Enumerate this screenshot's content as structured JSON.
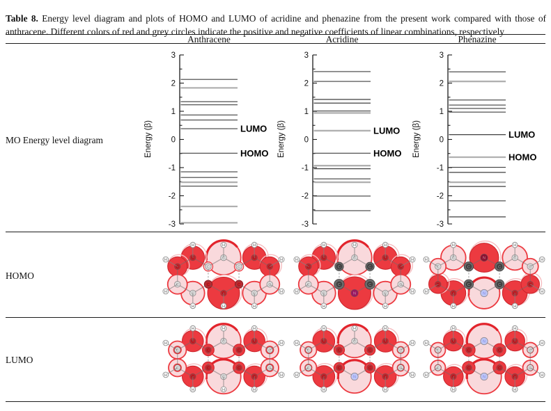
{
  "caption": {
    "label": "Table 8.",
    "text": " Energy level diagram and plots of HOMO and LUMO of acridine and phenazine from the present work compared with those of anthracene. Different colors of red and grey circles indicate the positive and negative coefficients of linear combinations, respectively"
  },
  "columns": [
    "Anthracene",
    "Acridine",
    "Phenazine"
  ],
  "rows": [
    "MO Energy level diagram",
    "HOMO",
    "LUMO"
  ],
  "colors": {
    "positive_red": "#ec3a40",
    "pale_pink": "#f9d9dc",
    "negative_grey": "#6e6e6e",
    "nitrogen_blue": "#bfc6f6",
    "nitrogen_magenta": "#9a1760",
    "nitrogen_darkred": "#8c1030",
    "level_dark": "#3f3f3f",
    "level_light": "#b0b0b0"
  },
  "energy_diagrams": {
    "ylabel": "Energy (β)",
    "ylim": [
      -3,
      3
    ],
    "yticks": [
      3,
      2,
      1,
      0,
      -1,
      -2,
      -3
    ],
    "lumo_label": "LUMO",
    "homo_label": "HOMO",
    "molecules": [
      {
        "name": "Anthracene",
        "lumo": 0.38,
        "homo": -0.49,
        "levels": [
          {
            "e": 2.13,
            "w": "d"
          },
          {
            "e": 1.83,
            "w": "l"
          },
          {
            "e": 1.34,
            "w": "d"
          },
          {
            "e": 1.23,
            "w": "d"
          },
          {
            "e": 0.87,
            "w": "d"
          },
          {
            "e": 0.69,
            "w": "d"
          },
          {
            "e": 0.38,
            "w": "d"
          },
          {
            "e": -0.49,
            "w": "d"
          },
          {
            "e": -1.15,
            "w": "d"
          },
          {
            "e": -1.35,
            "w": "d"
          },
          {
            "e": -1.52,
            "w": "l"
          },
          {
            "e": -1.66,
            "w": "d"
          },
          {
            "e": -2.38,
            "w": "l"
          },
          {
            "e": -2.96,
            "w": "l"
          }
        ]
      },
      {
        "name": "Acridine",
        "lumo": 0.31,
        "homo": -0.49,
        "levels": [
          {
            "e": 2.41,
            "w": "d"
          },
          {
            "e": 2.06,
            "w": "d"
          },
          {
            "e": 1.42,
            "w": "d"
          },
          {
            "e": 1.29,
            "w": "d"
          },
          {
            "e": 1.01,
            "w": "d"
          },
          {
            "e": 0.94,
            "w": "l"
          },
          {
            "e": 0.31,
            "w": "l"
          },
          {
            "e": -0.49,
            "w": "d"
          },
          {
            "e": -0.93,
            "w": "l"
          },
          {
            "e": -1.04,
            "w": "d"
          },
          {
            "e": -1.4,
            "w": "d"
          },
          {
            "e": -1.52,
            "w": "l"
          },
          {
            "e": -2.01,
            "w": "d"
          },
          {
            "e": -2.53,
            "w": "d"
          }
        ]
      },
      {
        "name": "Phenazine",
        "lumo": 0.17,
        "homo": -0.63,
        "levels": [
          {
            "e": 2.4,
            "w": "d"
          },
          {
            "e": 2.06,
            "w": "l"
          },
          {
            "e": 1.4,
            "w": "d"
          },
          {
            "e": 1.22,
            "w": "d"
          },
          {
            "e": 1.1,
            "w": "d"
          },
          {
            "e": 0.97,
            "w": "d"
          },
          {
            "e": 0.17,
            "w": "d"
          },
          {
            "e": -0.63,
            "w": "l"
          },
          {
            "e": -0.99,
            "w": "d"
          },
          {
            "e": -1.17,
            "w": "d"
          },
          {
            "e": -1.52,
            "w": "l"
          },
          {
            "e": -1.67,
            "w": "d"
          },
          {
            "e": -2.18,
            "w": "d"
          },
          {
            "e": -2.75,
            "w": "d"
          }
        ]
      }
    ]
  },
  "orbital_plots": {
    "homo": [
      {
        "molecule": "Anthracene",
        "h_on": [
          "mt",
          "mb",
          "lt",
          "lb",
          "rt",
          "rb",
          "llt",
          "llb",
          "rrt",
          "rrb"
        ],
        "ncol": {},
        "lobes": {
          "mt": [
            "pale",
            0.97
          ],
          "mb": [
            "red",
            0.9
          ],
          "lt": [
            "red",
            0.66
          ],
          "rt": [
            "red",
            0.66
          ],
          "lb": [
            "pale",
            0.66
          ],
          "rb": [
            "pale",
            0.66
          ],
          "llt": [
            "red",
            0.55
          ],
          "rrt": [
            "red",
            0.55
          ],
          "llb": [
            "pale",
            0.55
          ],
          "rrb": [
            "pale",
            0.55
          ],
          "flt": [
            "pale",
            0.26
          ],
          "frt": [
            "pale",
            0.26
          ],
          "flb": [
            "smallred",
            0.22
          ],
          "frb": [
            "smallred",
            0.22
          ]
        }
      },
      {
        "molecule": "Acridine",
        "h_on": [
          "mt",
          "lt",
          "lb",
          "rt",
          "rb",
          "llt",
          "llb",
          "rrt",
          "rrb"
        ],
        "ncol": {
          "mb": "magenta"
        },
        "lobes": {
          "mt": [
            "pale",
            0.97
          ],
          "mb": [
            "red",
            0.92
          ],
          "lt": [
            "red",
            0.66
          ],
          "rt": [
            "red",
            0.66
          ],
          "lb": [
            "pale",
            0.66
          ],
          "rb": [
            "pale",
            0.66
          ],
          "llt": [
            "red",
            0.55
          ],
          "rrt": [
            "red",
            0.55
          ],
          "llb": [
            "pale",
            0.55
          ],
          "rrb": [
            "pale",
            0.55
          ],
          "flt": [
            "grey",
            0.24
          ],
          "frt": [
            "grey",
            0.24
          ],
          "flb": [
            "grey",
            0.28
          ],
          "frb": [
            "grey",
            0.28
          ]
        }
      },
      {
        "molecule": "Phenazine",
        "h_on": [
          "lt",
          "lb",
          "rt",
          "rb",
          "llt",
          "llb",
          "rrt",
          "rrb"
        ],
        "ncol": {
          "mt": "darkred",
          "mb": "blue"
        },
        "lobes": {
          "mt": [
            "red",
            0.82
          ],
          "mb": [
            "pale",
            0.88
          ],
          "lt": [
            "pale",
            0.7
          ],
          "rt": [
            "pale",
            0.7
          ],
          "lb": [
            "red",
            0.7
          ],
          "rb": [
            "red",
            0.7
          ],
          "llt": [
            "pale",
            0.45
          ],
          "rrt": [
            "pale",
            0.45
          ],
          "llb": [
            "red",
            0.52
          ],
          "rrb": [
            "red",
            0.52
          ],
          "flt": [
            "grey",
            0.26
          ],
          "frt": [
            "grey",
            0.26
          ],
          "flb": [
            "grey",
            0.26
          ],
          "frb": [
            "grey",
            0.26
          ]
        }
      }
    ],
    "lumo": [
      {
        "molecule": "Anthracene",
        "h_on": [
          "mt",
          "mb",
          "lt",
          "lb",
          "rt",
          "rb",
          "llt",
          "llb",
          "rrt",
          "rrb"
        ],
        "ncol": {},
        "lobes": {
          "mt": [
            "pale",
            0.97
          ],
          "mb": [
            "pale",
            0.97
          ],
          "lt": [
            "red",
            0.6
          ],
          "rt": [
            "red",
            0.6
          ],
          "lb": [
            "red",
            0.6
          ],
          "rb": [
            "red",
            0.6
          ],
          "llt": [
            "palecore",
            0.5
          ],
          "rrt": [
            "palecore",
            0.5
          ],
          "llb": [
            "palecore",
            0.5
          ],
          "rrb": [
            "palecore",
            0.5
          ],
          "flt": [
            "red",
            0.33
          ],
          "frt": [
            "red",
            0.33
          ],
          "flb": [
            "red",
            0.33
          ],
          "frb": [
            "red",
            0.33
          ]
        }
      },
      {
        "molecule": "Acridine",
        "h_on": [
          "mt",
          "lt",
          "lb",
          "rt",
          "rb",
          "llt",
          "llb",
          "rrt",
          "rrb"
        ],
        "ncol": {
          "mb": "blue"
        },
        "lobes": {
          "mt": [
            "pale",
            0.93
          ],
          "mb": [
            "pale",
            0.93
          ],
          "lt": [
            "red",
            0.62
          ],
          "rt": [
            "red",
            0.62
          ],
          "lb": [
            "red",
            0.62
          ],
          "rb": [
            "red",
            0.62
          ],
          "llt": [
            "palecore",
            0.46
          ],
          "rrt": [
            "palecore",
            0.46
          ],
          "llb": [
            "palecore",
            0.46
          ],
          "rrb": [
            "palecore",
            0.46
          ],
          "flt": [
            "red",
            0.3
          ],
          "frt": [
            "red",
            0.3
          ],
          "flb": [
            "red",
            0.3
          ],
          "frb": [
            "red",
            0.3
          ]
        }
      },
      {
        "molecule": "Phenazine",
        "h_on": [
          "lt",
          "lb",
          "rt",
          "rb",
          "llt",
          "llb",
          "rrt",
          "rrb"
        ],
        "ncol": {
          "mt": "blue",
          "mb": "blue"
        },
        "lobes": {
          "mt": [
            "pale",
            0.97
          ],
          "mb": [
            "pale",
            0.97
          ],
          "lt": [
            "red",
            0.56
          ],
          "rt": [
            "red",
            0.56
          ],
          "lb": [
            "red",
            0.56
          ],
          "rb": [
            "red",
            0.56
          ],
          "llt": [
            "palecore",
            0.42
          ],
          "rrt": [
            "palecore",
            0.42
          ],
          "llb": [
            "palecore",
            0.42
          ],
          "rrb": [
            "palecore",
            0.42
          ],
          "flt": [
            "red",
            0.36
          ],
          "frt": [
            "red",
            0.36
          ],
          "flb": [
            "red",
            0.36
          ],
          "frb": [
            "red",
            0.36
          ]
        }
      }
    ]
  },
  "chart_data": [
    {
      "type": "line",
      "title": "Anthracene MO energy levels",
      "ylabel": "Energy (β)",
      "ylim": [
        -3,
        3
      ],
      "levels": [
        2.13,
        1.83,
        1.34,
        1.23,
        0.87,
        0.69,
        0.38,
        -0.49,
        -1.15,
        -1.35,
        -1.52,
        -1.66,
        -2.38,
        -2.96
      ],
      "lumo": 0.38,
      "homo": -0.49
    },
    {
      "type": "line",
      "title": "Acridine MO energy levels",
      "ylabel": "Energy (β)",
      "ylim": [
        -3,
        3
      ],
      "levels": [
        2.41,
        2.06,
        1.42,
        1.29,
        1.01,
        0.94,
        0.31,
        -0.49,
        -0.93,
        -1.04,
        -1.4,
        -1.52,
        -2.01,
        -2.53
      ],
      "lumo": 0.31,
      "homo": -0.49
    },
    {
      "type": "line",
      "title": "Phenazine MO energy levels",
      "ylabel": "Energy (β)",
      "ylim": [
        -3,
        3
      ],
      "levels": [
        2.4,
        2.06,
        1.4,
        1.22,
        1.1,
        0.97,
        0.17,
        -0.63,
        -0.99,
        -1.17,
        -1.52,
        -1.67,
        -2.18,
        -2.75
      ],
      "lumo": 0.17,
      "homo": -0.63
    }
  ]
}
